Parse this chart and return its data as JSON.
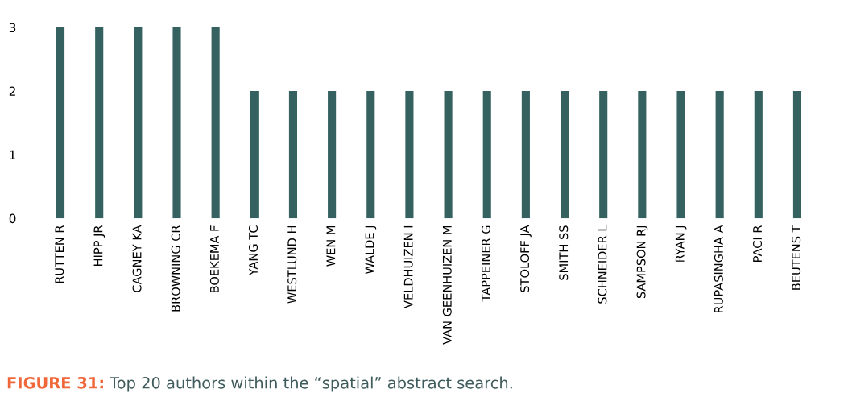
{
  "chart_data": {
    "type": "bar",
    "categories": [
      "RUTTEN R",
      "HIPP JR",
      "CAGNEY KA",
      "BROWNING CR",
      "BOEKEMA F",
      "YANG TC",
      "WESTLUND H",
      "WEN M",
      "WALDE J",
      "VELDHUIZEN I",
      "VAN GEENHUIZEN M",
      "TAPPEINER G",
      "STOLOFF JA",
      "SMITH SS",
      "SCHNEIDER L",
      "SAMPSON RJ",
      "RYAN J",
      "RUPASINGHA A",
      "PACI R",
      "BEUTENS T"
    ],
    "values": [
      3,
      3,
      3,
      3,
      3,
      2,
      2,
      2,
      2,
      2,
      2,
      2,
      2,
      2,
      2,
      2,
      2,
      2,
      2,
      2
    ],
    "color": "#356261",
    "ylim": [
      0,
      3
    ],
    "yticks": [
      0,
      1,
      2,
      3
    ],
    "annotations": [
      "FIGURE 31:",
      "Top 20 authors within the “spatial” abstract search."
    ]
  }
}
